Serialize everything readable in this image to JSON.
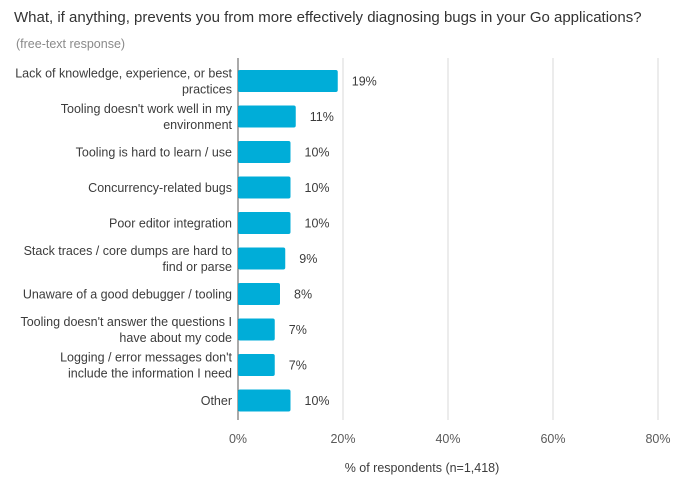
{
  "chart_data": {
    "type": "bar",
    "orientation": "horizontal",
    "title": "What, if anything, prevents you from more effectively diagnosing bugs in your Go applications?",
    "subtitle": "(free-text response)",
    "xlabel": "% of respondents (n=1,418)",
    "ylabel": "",
    "xlim": [
      0,
      80
    ],
    "ticks": [
      0,
      20,
      40,
      60,
      80
    ],
    "tick_labels": [
      "0%",
      "20%",
      "40%",
      "60%",
      "80%"
    ],
    "grid": true,
    "bar_color": "#00ADD8",
    "categories": [
      [
        "Lack of knowledge, experience, or best",
        "practices"
      ],
      [
        "Tooling doesn't work well in my",
        "environment"
      ],
      [
        "Tooling is hard to learn / use"
      ],
      [
        "Concurrency-related bugs"
      ],
      [
        "Poor editor integration"
      ],
      [
        "Stack traces / core dumps are hard to",
        "find or parse"
      ],
      [
        "Unaware of a good debugger / tooling"
      ],
      [
        "Tooling doesn't answer the questions I",
        "have about my code"
      ],
      [
        "Logging / error messages don't",
        "include the information I need"
      ],
      [
        "Other"
      ]
    ],
    "values": [
      19,
      11,
      10,
      10,
      10,
      9,
      8,
      7,
      7,
      10
    ],
    "value_labels": [
      "19%",
      "11%",
      "10%",
      "10%",
      "10%",
      "9%",
      "8%",
      "7%",
      "7%",
      "10%"
    ]
  }
}
